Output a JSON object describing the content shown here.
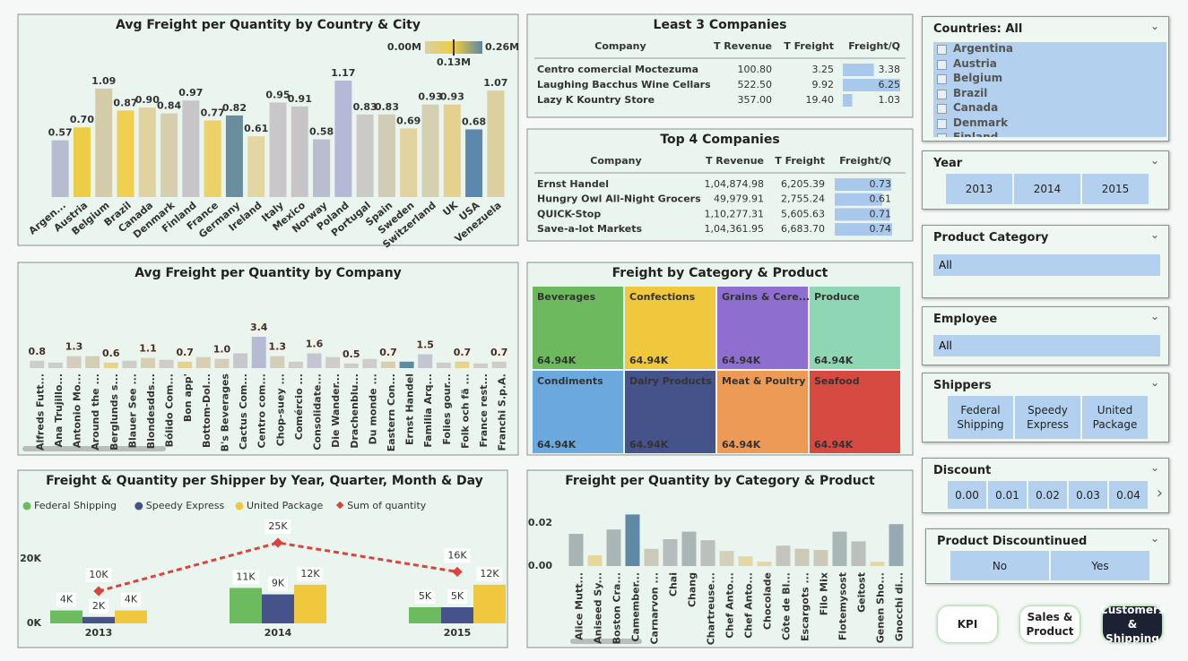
{
  "chart_data": [
    {
      "type": "bar",
      "title": "Avg Freight per Quantity by Country & City",
      "color_scale_labels": [
        "0.00M",
        "0.13M",
        "0.26M"
      ],
      "categories": [
        "Argen...",
        "Austria",
        "Belgium",
        "Brazil",
        "Canada",
        "Denmark",
        "Finland",
        "France",
        "Germany",
        "Ireland",
        "Italy",
        "Mexico",
        "Norway",
        "Poland",
        "Portugal",
        "Spain",
        "Sweden",
        "Switzerland",
        "UK",
        "USA",
        "Venezuela"
      ],
      "values": [
        0.57,
        0.7,
        1.09,
        0.87,
        0.9,
        0.84,
        0.97,
        0.77,
        0.82,
        0.61,
        0.95,
        0.91,
        0.58,
        1.17,
        0.83,
        0.83,
        0.69,
        0.93,
        0.93,
        0.68,
        1.07
      ],
      "value_labels": [
        "0.57",
        "0.70",
        "1.09",
        "0.87",
        "0.90",
        "0.84",
        "0.97",
        "0.77",
        "0.82",
        "0.61",
        "0.95",
        "0.91",
        "0.58",
        "1.17",
        "0.83",
        "0.83",
        "0.69",
        "0.93",
        "0.93",
        "0.68",
        "1.07"
      ],
      "colors": [
        "#b8bcd0",
        "#eccd45",
        "#d4cca8",
        "#f0d050",
        "#e0d3a0",
        "#d6cfae",
        "#c7c5c8",
        "#ecd068",
        "#6a8e9e",
        "#e3d6a3",
        "#c9c7ca",
        "#c7c5c8",
        "#babdd0",
        "#b5b8d6",
        "#cccac7",
        "#d1ccb6",
        "#e2d3a0",
        "#d6d0b2",
        "#e5d08e",
        "#5d88ae",
        "#dcd09e"
      ]
    },
    {
      "type": "bar",
      "title": "Avg Freight per Quantity by Company",
      "categories": [
        "Alfreds Futt...",
        "Ana Trujillo...",
        "Antonio Mo...",
        "Around the ...",
        "Berglunds s...",
        "Blauer See ...",
        "Blondesdds...",
        "Bólido Com...",
        "Bon app'",
        "Bottom-Dol...",
        "B's Beverages",
        "Cactus Com...",
        "Centro com...",
        "Chop-suey ...",
        "Comércio ...",
        "Consolidate...",
        "Die Wander...",
        "Drachenblu...",
        "Du monde ...",
        "Eastern Con...",
        "Ernst Handel",
        "Familia Arq...",
        "Folies gour...",
        "Folk och fä ...",
        "France rest...",
        "Franchi S.p.A."
      ],
      "values": [
        0.8,
        0.6,
        1.3,
        1.3,
        0.6,
        0.8,
        1.1,
        0.9,
        0.7,
        1.2,
        1.0,
        1.6,
        3.4,
        1.3,
        0.7,
        1.6,
        1.2,
        0.5,
        1.0,
        0.7,
        0.7,
        1.5,
        0.6,
        0.7,
        0.5,
        0.7
      ],
      "value_labels": [
        "0.8",
        null,
        "1.3",
        null,
        "0.6",
        null,
        "1.1",
        null,
        "0.7",
        null,
        "1.0",
        null,
        "3.4",
        "1.3",
        null,
        "1.6",
        null,
        "0.5",
        null,
        "0.7",
        null,
        "1.5",
        null,
        "0.7",
        null,
        "0.7"
      ],
      "colors": [
        "#cfcdc9",
        "#cfcdc9",
        "#d2cdbd",
        "#d4cdb8",
        "#e4d48e",
        "#cfcdc9",
        "#d6cfb2",
        "#cfcdc9",
        "#e2d394",
        "#d6cfb2",
        "#d4cdb8",
        "#c8c8cc",
        "#b7bad4",
        "#d4cdb8",
        "#cfcdc9",
        "#c4c5d0",
        "#cfcdc9",
        "#cfcdc9",
        "#cfcdc9",
        "#d6cfb2",
        "#5e8a9e",
        "#c4c5d0",
        "#cfcdc9",
        "#e4d48e",
        "#cfcdc9",
        "#cfcdc9"
      ]
    },
    {
      "type": "combo",
      "title": "Freight & Quantity per Shipper by Year, Quarter, Month & Day",
      "categories": [
        "2013",
        "2014",
        "2015"
      ],
      "series": [
        {
          "name": "Federal Shipping",
          "color": "#6cbb5e",
          "type": "bar",
          "values": [
            4000,
            11000,
            5000
          ],
          "value_labels": [
            "4K",
            "11K",
            "5K"
          ]
        },
        {
          "name": "Speedy Express",
          "color": "#46528a",
          "type": "bar",
          "values": [
            2000,
            9000,
            5000
          ],
          "value_labels": [
            "2K",
            "9K",
            "5K"
          ]
        },
        {
          "name": "United Package",
          "color": "#f0c83e",
          "type": "bar",
          "values": [
            4000,
            12000,
            12000
          ],
          "value_labels": [
            "4K",
            "12K",
            "12K"
          ]
        },
        {
          "name": "Sum of quantity",
          "color": "#d9453c",
          "type": "line",
          "values": [
            10000,
            25000,
            16000
          ],
          "value_labels": [
            "10K",
            "25K",
            "16K"
          ]
        }
      ],
      "ylim": [
        0,
        30000
      ],
      "yticks": [
        {
          "value": 0,
          "label": "0K"
        },
        {
          "value": 20000,
          "label": "20K"
        }
      ],
      "legend": "top-left"
    },
    {
      "type": "bar",
      "title": "Freight per Quantity by Category & Product",
      "categories": [
        "Alice Mutt...",
        "Aniseed Sy...",
        "Boston Cra...",
        "Camember...",
        "Carnarvon ...",
        "Chai",
        "Chang",
        "Chartreuse...",
        "Chef Anto...",
        "Chef Anto...",
        "Chocolade",
        "Côte de Bl...",
        "Escargots ...",
        "Filo Mix",
        "Flotemysost",
        "Geitost",
        "Genen Sho...",
        "Gnocchi di..."
      ],
      "values": [
        0.015,
        0.005,
        0.017,
        0.024,
        0.008,
        0.0125,
        0.016,
        0.012,
        0.007,
        0.0045,
        0.002,
        0.0095,
        0.008,
        0.0075,
        0.016,
        0.0115,
        0.002,
        0.0195
      ],
      "colors": [
        "#a6b4b4",
        "#e6d89c",
        "#a9b6b6",
        "#5f8aa6",
        "#ccc9b9",
        "#b4bcbc",
        "#a9b6b6",
        "#bcc0bc",
        "#d4cfb7",
        "#e2d8a6",
        "#e6d89c",
        "#c6c5bd",
        "#ccc9b9",
        "#ccc9b9",
        "#a9b6b6",
        "#bcc0bc",
        "#e6d89c",
        "#97aab3"
      ],
      "ylim": [
        0,
        0.025
      ],
      "yticks": [
        {
          "value": 0,
          "label": "0.00"
        },
        {
          "value": 0.02,
          "label": "0.02"
        }
      ]
    },
    {
      "type": "treemap",
      "title": "Freight by Category & Product",
      "categories": [
        "Beverages",
        "Confections",
        "Grains & Cere...",
        "Produce",
        "Condiments",
        "Dairy Products",
        "Meat & Poultry",
        "Seafood"
      ],
      "values": [
        64940,
        64940,
        64940,
        64940,
        64940,
        64940,
        64940,
        64940
      ],
      "value_labels": [
        "64.94K",
        "64.94K",
        "64.94K",
        "64.94K",
        "64.94K",
        "64.94K",
        "64.94K",
        "64.94K"
      ],
      "colors": [
        "#6dba5e",
        "#f0c83e",
        "#8e6fcf",
        "#8fd6b4",
        "#6aa8de",
        "#46528a",
        "#ee9a57",
        "#d64a42"
      ]
    }
  ],
  "tables": [
    {
      "title": "Least 3 Companies",
      "columns": [
        "Company",
        "T Revenue",
        "T Freight",
        "Freight/Q"
      ],
      "rows": [
        [
          "Centro comercial Moctezuma",
          "100.80",
          "3.25",
          3.38
        ],
        [
          "Laughing Bacchus Wine Cellars",
          "522.50",
          "9.92",
          6.25
        ],
        [
          "Lazy K Kountry Store",
          "357.00",
          "19.40",
          1.03
        ]
      ]
    },
    {
      "title": "Top 4 Companies",
      "columns": [
        "Company",
        "T Revenue",
        "T Freight",
        "Freight/Q"
      ],
      "rows": [
        [
          "Ernst Handel",
          "1,04,874.98",
          "6,205.39",
          0.73
        ],
        [
          "Hungry Owl All-Night Grocers",
          "49,979.91",
          "2,755.24",
          0.61
        ],
        [
          "QUICK-Stop",
          "1,10,277.31",
          "5,605.63",
          0.71
        ],
        [
          "Save-a-lot Markets",
          "1,04,361.95",
          "6,683.70",
          0.74
        ]
      ]
    }
  ],
  "slicers": {
    "countries": {
      "title": "Countries: All",
      "items": [
        "Argentina",
        "Austria",
        "Belgium",
        "Brazil",
        "Canada",
        "Denmark",
        "Finland"
      ]
    },
    "year": {
      "title": "Year",
      "items": [
        "2013",
        "2014",
        "2015"
      ]
    },
    "category": {
      "title": "Product Category",
      "value": "All"
    },
    "employee": {
      "title": "Employee",
      "value": "All"
    },
    "shippers": {
      "title": "Shippers",
      "items": [
        "Federal Shipping",
        "Speedy Express",
        "United Package"
      ]
    },
    "discount": {
      "title": "Discount",
      "items": [
        "0.00",
        "0.01",
        "0.02",
        "0.03",
        "0.04"
      ]
    },
    "discontinued": {
      "title": "Product Discountinued",
      "items": [
        "No",
        "Yes"
      ]
    }
  },
  "buttons": [
    "KPI",
    "Sales & Product",
    "Customers & Shipping"
  ]
}
